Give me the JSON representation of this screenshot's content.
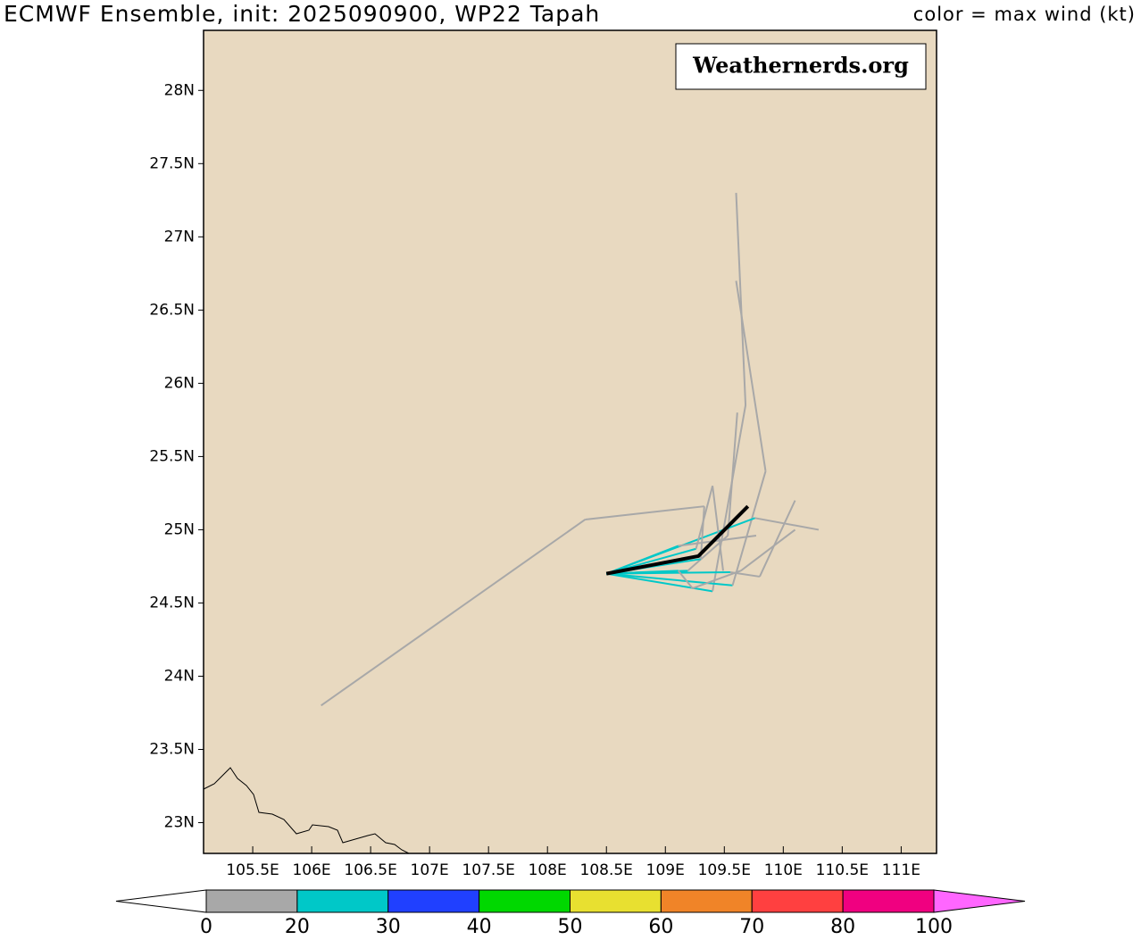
{
  "chart_data": {
    "type": "track-map",
    "title": "ECMWF Ensemble, init: 2025090900, WP22 Tapah",
    "subtitle": "color = max wind (kt)",
    "watermark": "Weathernerds.org",
    "background": "#e8d9c0",
    "xlim": [
      105.083,
      111.3
    ],
    "ylim": [
      22.79,
      28.41
    ],
    "xticks": [
      {
        "value": 105.5,
        "label": "105.5E"
      },
      {
        "value": 106,
        "label": "106E"
      },
      {
        "value": 106.5,
        "label": "106.5E"
      },
      {
        "value": 107,
        "label": "107E"
      },
      {
        "value": 107.5,
        "label": "107.5E"
      },
      {
        "value": 108,
        "label": "108E"
      },
      {
        "value": 108.5,
        "label": "108.5E"
      },
      {
        "value": 109,
        "label": "109E"
      },
      {
        "value": 109.5,
        "label": "109.5E"
      },
      {
        "value": 110,
        "label": "110E"
      },
      {
        "value": 110.5,
        "label": "110.5E"
      },
      {
        "value": 111,
        "label": "111E"
      }
    ],
    "yticks": [
      {
        "value": 23,
        "label": "23N"
      },
      {
        "value": 23.5,
        "label": "23.5N"
      },
      {
        "value": 24,
        "label": "24N"
      },
      {
        "value": 24.5,
        "label": "24.5N"
      },
      {
        "value": 25,
        "label": "25N"
      },
      {
        "value": 25.5,
        "label": "25.5N"
      },
      {
        "value": 26,
        "label": "26N"
      },
      {
        "value": 26.5,
        "label": "26.5N"
      },
      {
        "value": 27,
        "label": "27N"
      },
      {
        "value": 27.5,
        "label": "27.5N"
      },
      {
        "value": 28,
        "label": "28N"
      }
    ],
    "tracks": [
      {
        "lon": [
          108.5,
          109.4,
          109.68,
          109.6
        ],
        "lat": [
          24.7,
          24.58,
          25.85,
          27.3
        ],
        "colors": [
          "#00c8c8",
          "#a8a8a8",
          "#a8a8a8"
        ]
      },
      {
        "lon": [
          108.5,
          109.57,
          109.85,
          109.6
        ],
        "lat": [
          24.7,
          24.62,
          25.4,
          26.7
        ],
        "colors": [
          "#00c8c8",
          "#a8a8a8",
          "#a8a8a8"
        ]
      },
      {
        "lon": [
          108.5,
          109.19,
          109.53,
          109.61
        ],
        "lat": [
          24.7,
          24.72,
          24.96,
          25.8
        ],
        "colors": [
          "#00c8c8",
          "#a8a8a8",
          "#a8a8a8"
        ]
      },
      {
        "lon": [
          108.5,
          109.76,
          110.3
        ],
        "lat": [
          24.7,
          25.08,
          25.0
        ],
        "colors": [
          "#00c8c8",
          "#a8a8a8"
        ]
      },
      {
        "lon": [
          108.5,
          109.55,
          109.8,
          110.1
        ],
        "lat": [
          24.7,
          24.71,
          24.68,
          25.2
        ],
        "colors": [
          "#00c8c8",
          "#a8a8a8",
          "#a8a8a8"
        ]
      },
      {
        "lon": [
          108.5,
          109.11,
          109.23,
          109.64,
          110.1
        ],
        "lat": [
          24.7,
          24.72,
          24.6,
          24.72,
          25.0
        ],
        "colors": [
          "#00c8c8",
          "#a8a8a8",
          "#a8a8a8",
          "#a8a8a8"
        ]
      },
      {
        "lon": [
          108.5,
          109.26,
          109.4,
          109.49
        ],
        "lat": [
          24.7,
          24.87,
          25.3,
          24.72
        ],
        "colors": [
          "#00c8c8",
          "#a8a8a8",
          "#a8a8a8"
        ]
      },
      {
        "lon": [
          108.5,
          109.11,
          109.77
        ],
        "lat": [
          24.7,
          24.89,
          24.96
        ],
        "colors": [
          "#00c8c8",
          "#a8a8a8"
        ]
      },
      {
        "lon": [
          108.5,
          109.3,
          109.33,
          108.32,
          106.08
        ],
        "lat": [
          24.7,
          24.8,
          25.16,
          25.07,
          23.8
        ],
        "colors": [
          "#00c8c8",
          "#a8a8a8",
          "#a8a8a8",
          "#a8a8a8"
        ]
      }
    ],
    "mean_track": {
      "lon": [
        108.5,
        109.28,
        109.7
      ],
      "lat": [
        24.7,
        24.82,
        25.16
      ],
      "color": "#000000"
    },
    "colorbar": {
      "bounds": [
        0,
        20,
        30,
        40,
        50,
        60,
        70,
        80,
        100
      ],
      "colors": [
        "#a8a8a8",
        "#00c8c8",
        "#2040ff",
        "#00d800",
        "#e8e030",
        "#f08428",
        "#ff4040",
        "#f00080"
      ],
      "under_color": "#ffffff",
      "over_color": "#ff66ff"
    }
  }
}
